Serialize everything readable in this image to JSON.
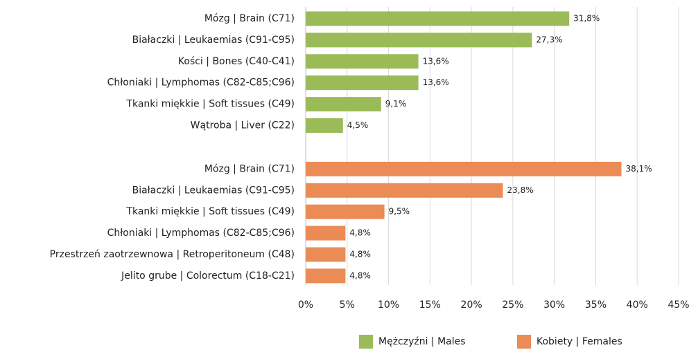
{
  "chart_data": {
    "type": "bar",
    "orientation": "horizontal",
    "categories": [
      "Mózg | Brain (C71)",
      "Białaczki | Leukaemias (C91-C95)",
      "Kości | Bones (C40-C41)",
      "Chłoniaki | Lymphomas (C82-C85;C96)",
      "Tkanki miękkie | Soft tissues (C49)",
      "Wątroba | Liver (C22)",
      "Mózg | Brain (C71)",
      "Białaczki | Leukaemias (C91-C95)",
      "Tkanki miękkie | Soft tissues (C49)",
      "Chłoniaki | Lymphomas (C82-C85;C96)",
      "Przestrzeń zaotrzewnowa | Retroperitoneum (C48)",
      "Jelito grube | Colorectum (C18-C21)"
    ],
    "series": [
      {
        "name": "Mężczyźni | Males",
        "color": "#9bbb59",
        "values": [
          31.8,
          27.3,
          13.6,
          13.6,
          9.1,
          4.5,
          null,
          null,
          null,
          null,
          null,
          null
        ],
        "value_labels": [
          "31,8%",
          "27,3%",
          "13,6%",
          "13,6%",
          "9,1%",
          "4,5%",
          null,
          null,
          null,
          null,
          null,
          null
        ]
      },
      {
        "name": "Kobiety | Females",
        "color": "#eb8b55",
        "values": [
          null,
          null,
          null,
          null,
          null,
          null,
          38.1,
          23.8,
          9.5,
          4.8,
          4.8,
          4.8
        ],
        "value_labels": [
          null,
          null,
          null,
          null,
          null,
          null,
          "38,1%",
          "23,8%",
          "9,5%",
          "4,8%",
          "4,8%",
          "4,8%"
        ]
      }
    ],
    "xlim": [
      0,
      45
    ],
    "xticks": [
      {
        "value": 0,
        "label": "0%"
      },
      {
        "value": 5,
        "label": "5%"
      },
      {
        "value": 10,
        "label": "10%"
      },
      {
        "value": 15,
        "label": "15%"
      },
      {
        "value": 20,
        "label": "20%"
      },
      {
        "value": 25,
        "label": "25%"
      },
      {
        "value": 30,
        "label": "30%"
      },
      {
        "value": 35,
        "label": "35%"
      },
      {
        "value": 40,
        "label": "40%"
      },
      {
        "value": 45,
        "label": "45%"
      }
    ],
    "grid": true,
    "legend": "bottom"
  }
}
